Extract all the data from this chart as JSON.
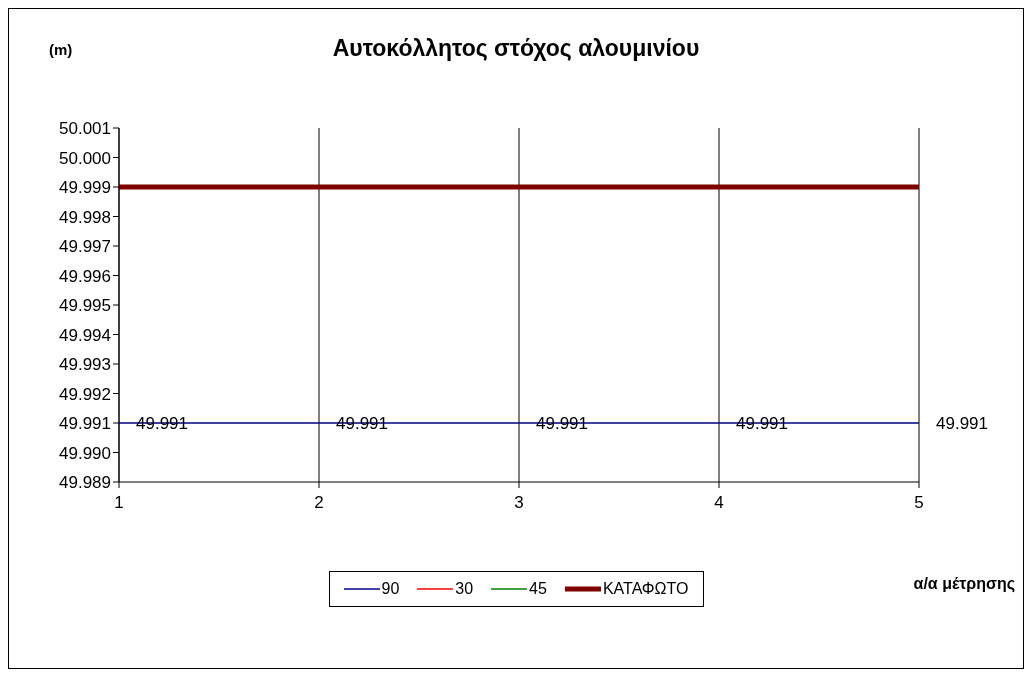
{
  "chart_data": {
    "type": "line",
    "title": "Αυτοκόλλητος στόχος αλουμινίου",
    "ylabel": "(m)",
    "xlabel": "α/α μέτρησης",
    "x": [
      1,
      2,
      3,
      4,
      5
    ],
    "series": [
      {
        "name": "90",
        "color": "#000080",
        "values": [
          49.991,
          49.991,
          49.991,
          49.991,
          49.991
        ],
        "value_labels": [
          "49.991",
          "49.991",
          "49.991",
          "49.991",
          "49.991"
        ]
      },
      {
        "name": "30",
        "color": "#ff0000",
        "values": [
          null,
          null,
          null,
          null,
          null
        ]
      },
      {
        "name": "45",
        "color": "#008000",
        "values": [
          null,
          null,
          null,
          null,
          null
        ]
      },
      {
        "name": "ΚΑΤΑΦΩΤΟ",
        "color": "#800000",
        "values": [
          49.999,
          49.999,
          49.999,
          49.999,
          49.999
        ]
      }
    ],
    "xlim": [
      1,
      5
    ],
    "xticks": [
      1,
      2,
      3,
      4,
      5
    ],
    "ylim": [
      49.989,
      50.001
    ],
    "yticks": [
      49.989,
      {
        "value": 49.99,
        "label": "49.990"
      },
      49.991,
      49.992,
      49.993,
      49.994,
      49.995,
      49.996,
      49.997,
      49.998,
      49.999,
      {
        "value": 50,
        "label": "50.000"
      },
      50.001
    ],
    "grid": "x",
    "legend": "bottom",
    "marker": "none"
  }
}
